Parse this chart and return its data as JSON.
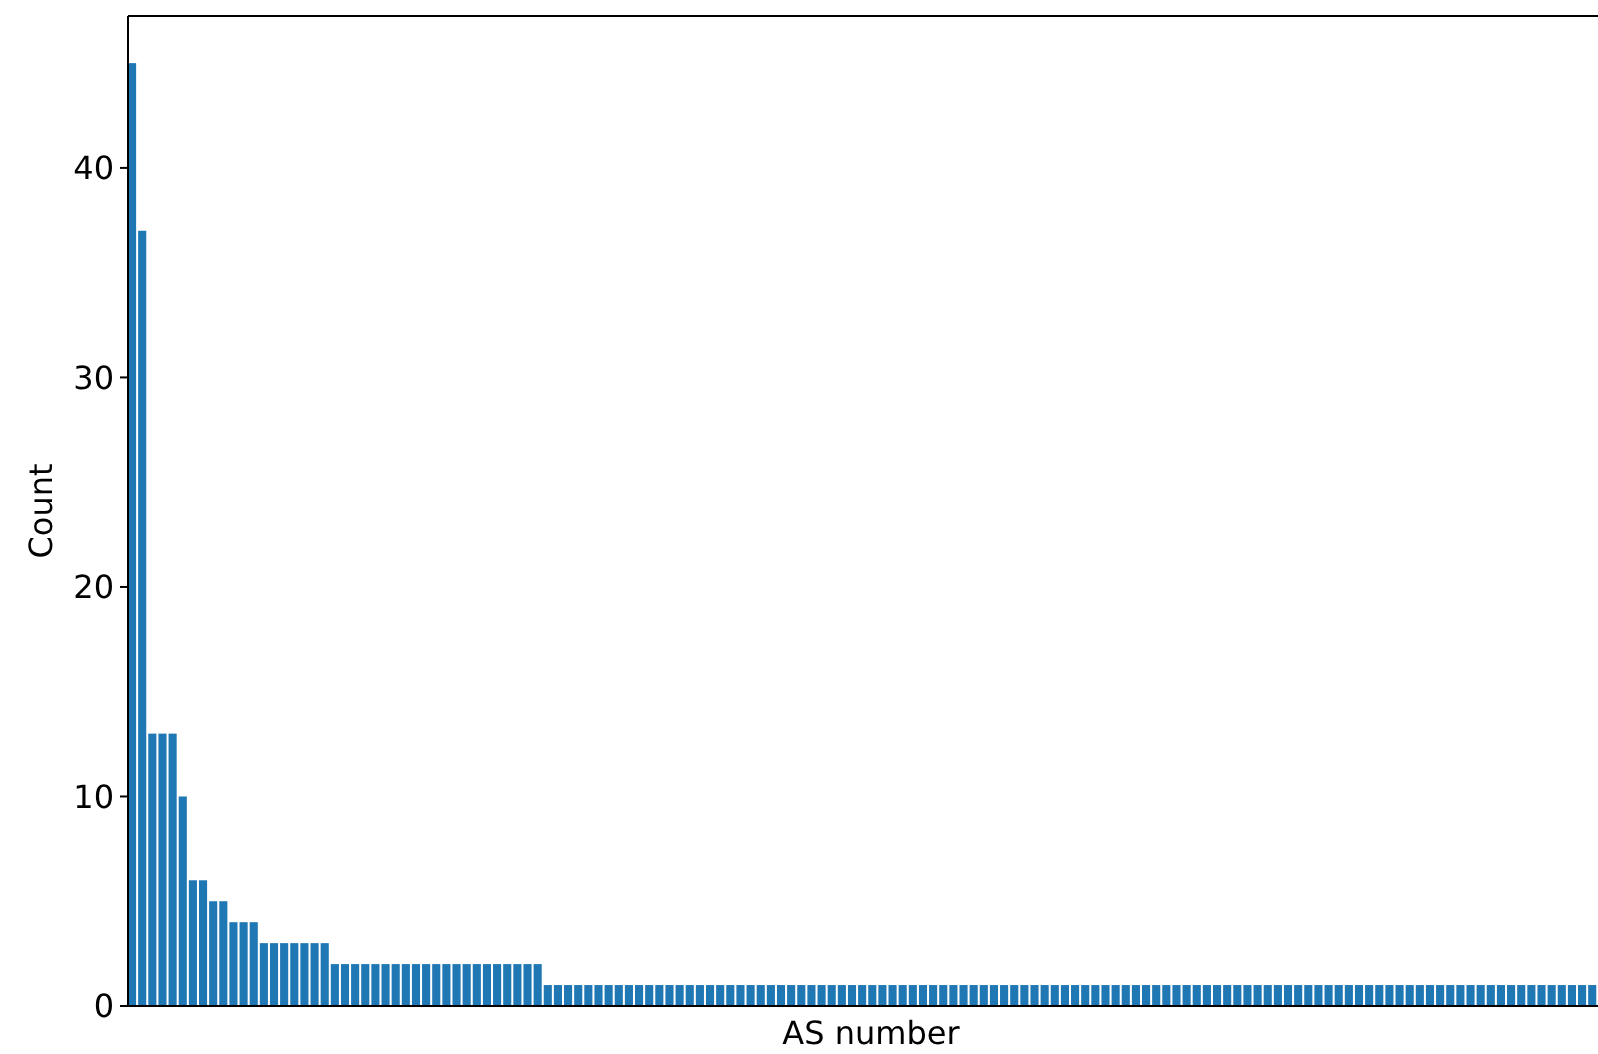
{
  "chart_data": {
    "type": "bar",
    "xlabel": "AS number",
    "ylabel": "Count",
    "color": "#1f77b4",
    "ylim": [
      0,
      47.25
    ],
    "yticks": [
      0,
      10,
      20,
      30,
      40
    ],
    "grid": false,
    "categories": [
      null,
      null,
      null,
      null,
      null,
      null,
      null,
      null,
      null,
      null,
      null,
      null,
      null,
      null,
      null,
      null,
      null,
      null,
      null,
      null,
      null,
      null,
      null,
      null,
      null,
      null,
      null,
      null,
      null,
      null,
      null,
      null,
      null,
      null,
      null,
      null,
      null,
      null,
      null,
      null,
      null,
      null,
      null,
      null,
      null,
      null,
      null,
      null,
      null,
      null,
      null,
      null,
      null,
      null,
      null,
      null,
      null,
      null,
      null,
      null,
      null,
      null,
      null,
      null,
      null,
      null,
      null,
      null,
      null,
      null,
      null,
      null,
      null,
      null,
      null,
      null,
      null,
      null,
      null,
      null,
      null,
      null,
      null,
      null,
      null,
      null,
      null,
      null,
      null,
      null,
      null,
      null,
      null,
      null,
      null,
      null,
      null,
      null,
      null,
      null,
      null,
      null,
      null,
      null,
      null,
      null,
      null,
      null,
      null,
      null,
      null,
      null,
      null,
      null,
      null,
      null,
      null,
      null,
      null,
      null,
      null,
      null,
      null,
      null,
      null,
      null,
      null,
      null,
      null,
      null,
      null,
      null,
      null,
      null,
      null,
      null,
      null,
      null,
      null,
      null,
      null,
      null,
      null,
      null,
      null
    ],
    "values": [
      45,
      37,
      13,
      13,
      13,
      10,
      6,
      6,
      5,
      5,
      4,
      4,
      4,
      3,
      3,
      3,
      3,
      3,
      3,
      3,
      2,
      2,
      2,
      2,
      2,
      2,
      2,
      2,
      2,
      2,
      2,
      2,
      2,
      2,
      2,
      2,
      2,
      2,
      2,
      2,
      2,
      1,
      1,
      1,
      1,
      1,
      1,
      1,
      1,
      1,
      1,
      1,
      1,
      1,
      1,
      1,
      1,
      1,
      1,
      1,
      1,
      1,
      1,
      1,
      1,
      1,
      1,
      1,
      1,
      1,
      1,
      1,
      1,
      1,
      1,
      1,
      1,
      1,
      1,
      1,
      1,
      1,
      1,
      1,
      1,
      1,
      1,
      1,
      1,
      1,
      1,
      1,
      1,
      1,
      1,
      1,
      1,
      1,
      1,
      1,
      1,
      1,
      1,
      1,
      1,
      1,
      1,
      1,
      1,
      1,
      1,
      1,
      1,
      1,
      1,
      1,
      1,
      1,
      1,
      1,
      1,
      1,
      1,
      1,
      1,
      1,
      1,
      1,
      1,
      1,
      1,
      1,
      1,
      1,
      1,
      1,
      1,
      1,
      1,
      1,
      1,
      1,
      1,
      1,
      1
    ]
  }
}
